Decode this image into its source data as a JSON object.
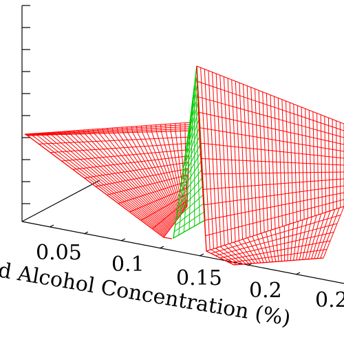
{
  "chart_data": {
    "type": "surface3d",
    "title": "",
    "xlabel": "d Alcohol Concentration (%)",
    "ylabel": "",
    "zlabel": "",
    "x_ticks": [
      "0.05",
      "0.1",
      "0.15",
      "0.2",
      "0.2"
    ],
    "xlim": [
      0.0,
      0.25
    ],
    "grid": false,
    "legend": "none",
    "series": [
      {
        "color": "#ff0000",
        "region": "left",
        "x_range": [
          0.0,
          0.125
        ]
      },
      {
        "color": "#00cc00",
        "region": "transition",
        "x_range": [
          0.125,
          0.14
        ]
      },
      {
        "color": "#ff0000",
        "region": "right",
        "x_range": [
          0.14,
          0.25
        ]
      }
    ]
  }
}
